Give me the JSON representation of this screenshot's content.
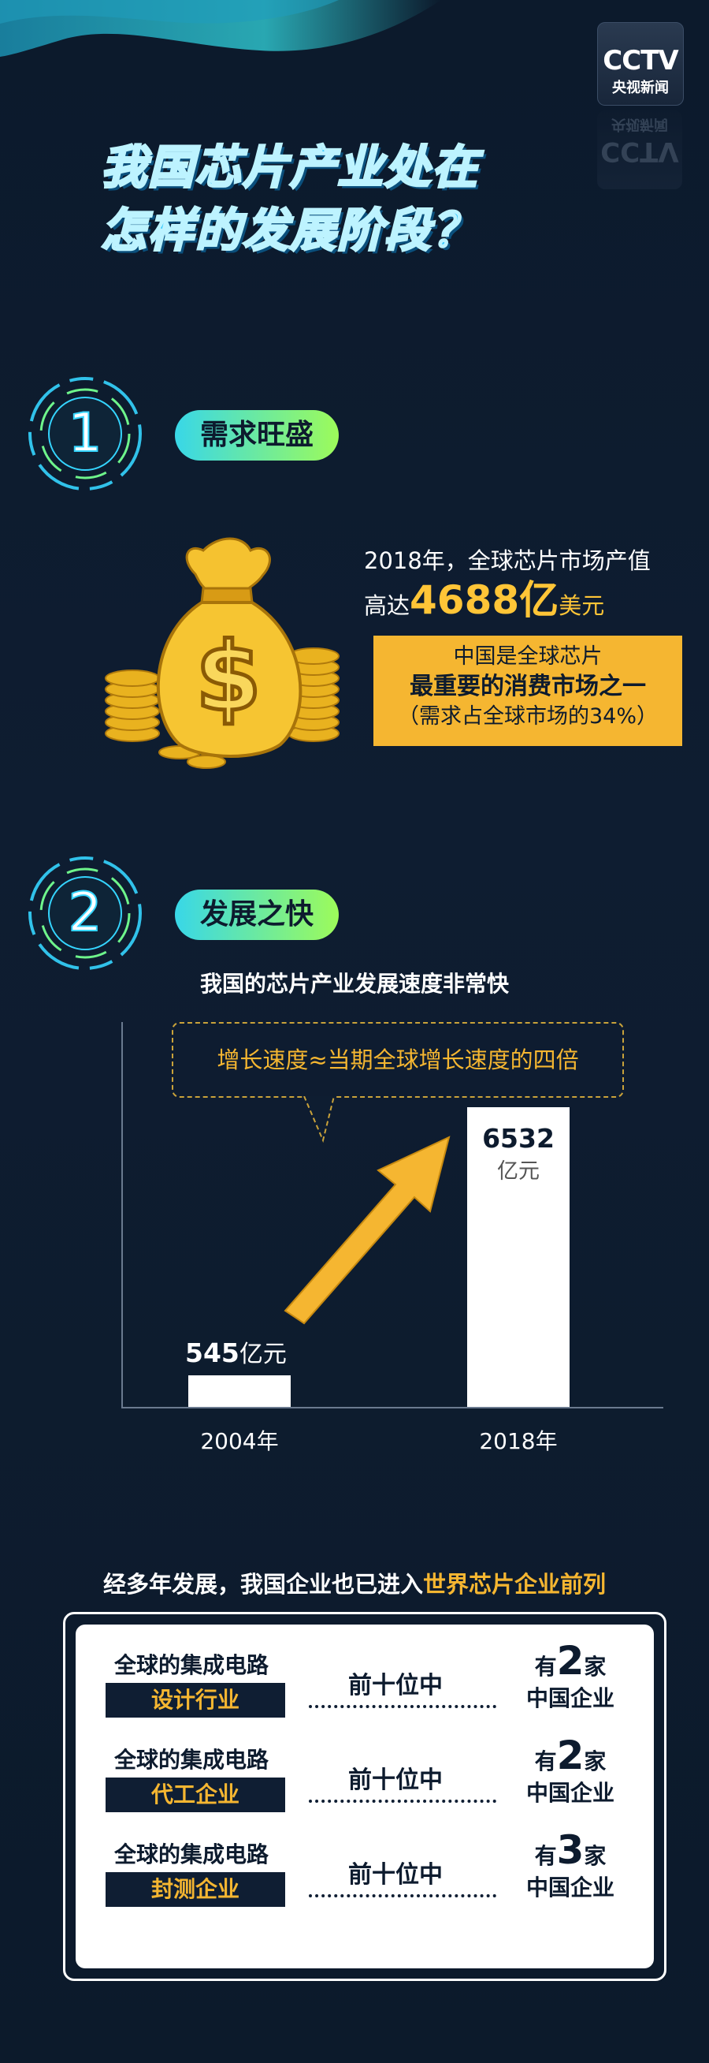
{
  "logo": {
    "mark": "CCTV",
    "sub": "央视新闻"
  },
  "title": {
    "line1": "我国芯片产业处在",
    "line2": "怎样的发展阶段？"
  },
  "section1": {
    "number": "1",
    "heading": "需求旺盛",
    "line1": "2018年，全球芯片市场产值",
    "line2_prefix": "高达",
    "line2_value": "4688亿",
    "line2_unit": "美元",
    "box_line1": "中国是全球芯片",
    "box_line2": "最重要的消费市场之一",
    "box_line3": "（需求占全球市场的34%）"
  },
  "section2": {
    "number": "2",
    "heading": "发展之快",
    "chart_title": "我国的芯片产业发展速度非常快",
    "callout": "增长速度≈当期全球增长速度的四倍"
  },
  "chart_data": {
    "type": "bar",
    "categories": [
      "2004年",
      "2018年"
    ],
    "values": [
      545,
      6532
    ],
    "value_labels": [
      {
        "number": "545",
        "unit": "亿元"
      },
      {
        "number": "6532",
        "unit": "亿元"
      }
    ],
    "title": "我国的芯片产业发展速度非常快",
    "xlabel": "",
    "ylabel": "",
    "grid": false
  },
  "section3": {
    "title_prefix": "经多年发展，我国企业也已进入",
    "title_highlight": "世界芯片企业前列",
    "rows": [
      {
        "category": "全球的集成电路",
        "sector": "设计行业",
        "middle": "前十位中",
        "prefix": "有",
        "count": "2",
        "suffix": "家",
        "result": "中国企业"
      },
      {
        "category": "全球的集成电路",
        "sector": "代工企业",
        "middle": "前十位中",
        "prefix": "有",
        "count": "2",
        "suffix": "家",
        "result": "中国企业"
      },
      {
        "category": "全球的集成电路",
        "sector": "封测企业",
        "middle": "前十位中",
        "prefix": "有",
        "count": "3",
        "suffix": "家",
        "result": "中国企业"
      }
    ]
  },
  "colors": {
    "background": "#0d1b2e",
    "accent_yellow": "#f5b631",
    "accent_cyan": "#31c7ff",
    "pill_start": "#38d7e8",
    "pill_end": "#9dfb5a"
  }
}
